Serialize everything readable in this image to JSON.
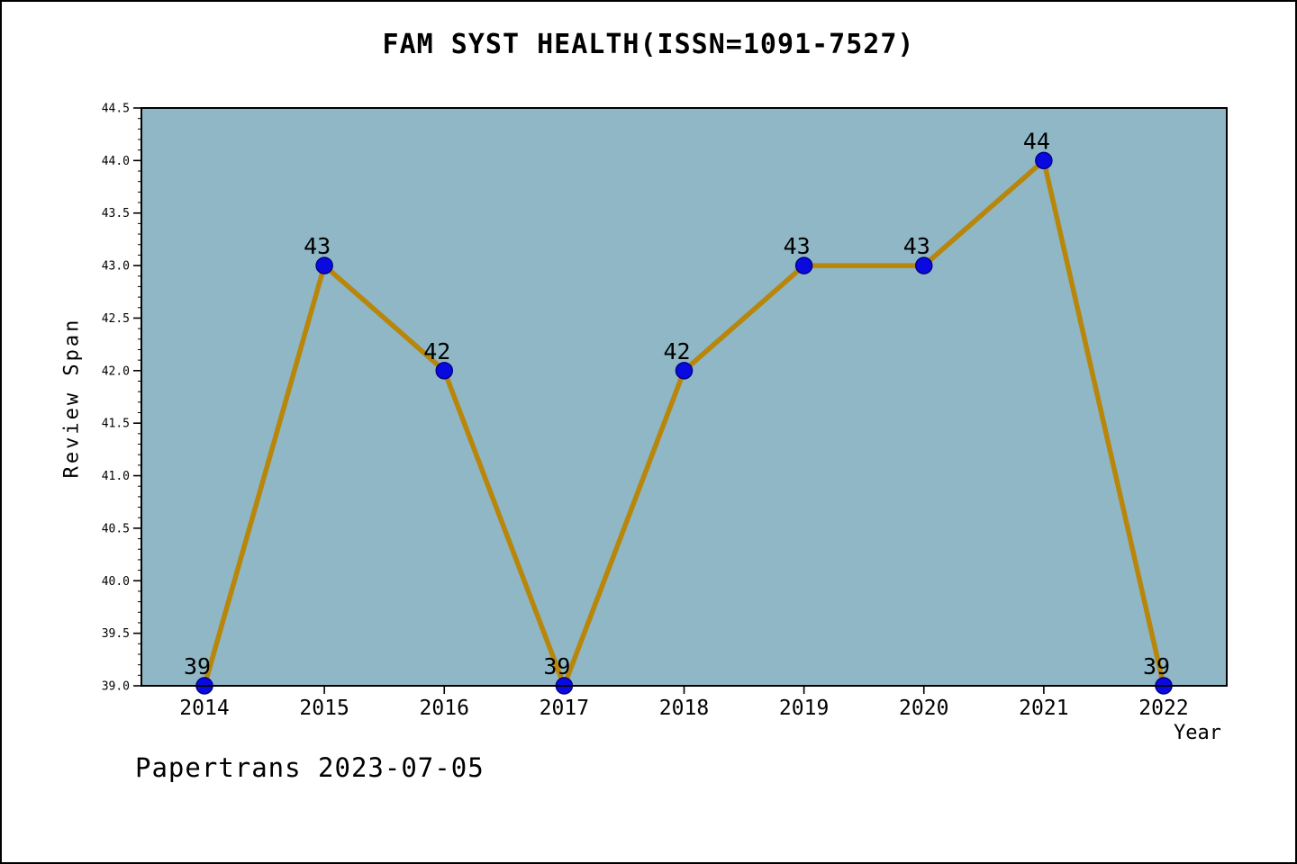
{
  "chart_data": {
    "type": "line",
    "title": "FAM SYST HEALTH(ISSN=1091-7527)",
    "xlabel": "Year",
    "ylabel": "Review Span",
    "categories": [
      "2014",
      "2015",
      "2016",
      "2017",
      "2018",
      "2019",
      "2020",
      "2021",
      "2022"
    ],
    "values": [
      39,
      43,
      42,
      39,
      42,
      43,
      43,
      44,
      39
    ],
    "ylim": [
      39.0,
      44.5
    ],
    "ytick_step": 0.5,
    "ytick_minor_step": 0.1,
    "grid": false,
    "legend": "none",
    "colors": {
      "plot_bg": "#8FB7C5",
      "line": "#B8860B",
      "marker_fill": "#0A0AE0",
      "marker_edge": "#00008B",
      "axis": "#000000",
      "text": "#000000"
    }
  },
  "footer": {
    "text": "Papertrans 2023-07-05"
  }
}
